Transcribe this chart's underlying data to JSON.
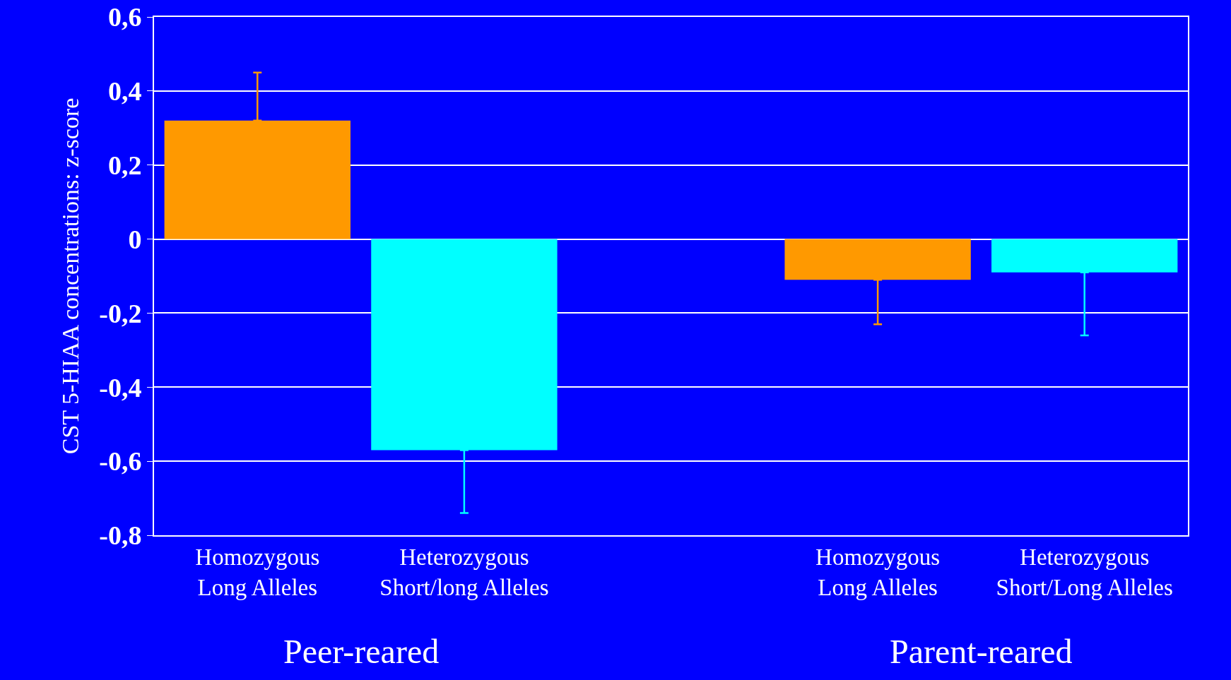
{
  "chart_data": {
    "type": "bar",
    "ylabel": "CST 5-HIAA concentrations: z-score",
    "categories": [
      "Homozygous\nLong Alleles",
      "Heterozygous\nShort/long Alleles",
      null,
      "Homozygous\nLong Alleles",
      "Heterozygous\nShort/Long Alleles"
    ],
    "values": [
      0.32,
      -0.57,
      null,
      -0.11,
      -0.09
    ],
    "colors": [
      "#ff9900",
      "#00ffff",
      "#ffffff",
      "#ff9900",
      "#00ffff"
    ],
    "errors": [
      [
        0.32,
        0.45
      ],
      [
        -0.74,
        -0.57
      ],
      null,
      [
        -0.23,
        -0.11
      ],
      [
        -0.26,
        -0.09
      ]
    ],
    "ylim": [
      -0.8,
      0.6
    ],
    "yticks": [
      {
        "value": -0.8,
        "label": "-0,8"
      },
      {
        "value": -0.6,
        "label": "-0,6"
      },
      {
        "value": -0.4,
        "label": "-0,4"
      },
      {
        "value": -0.2,
        "label": "-0,2"
      },
      {
        "value": 0,
        "label": "0"
      },
      {
        "value": 0.2,
        "label": "0,2"
      },
      {
        "value": 0.4,
        "label": "0,4"
      },
      {
        "value": 0.6,
        "label": "0,6"
      }
    ],
    "grid": "y",
    "annotations": [
      "Peer-reared",
      "Parent-reared"
    ]
  }
}
